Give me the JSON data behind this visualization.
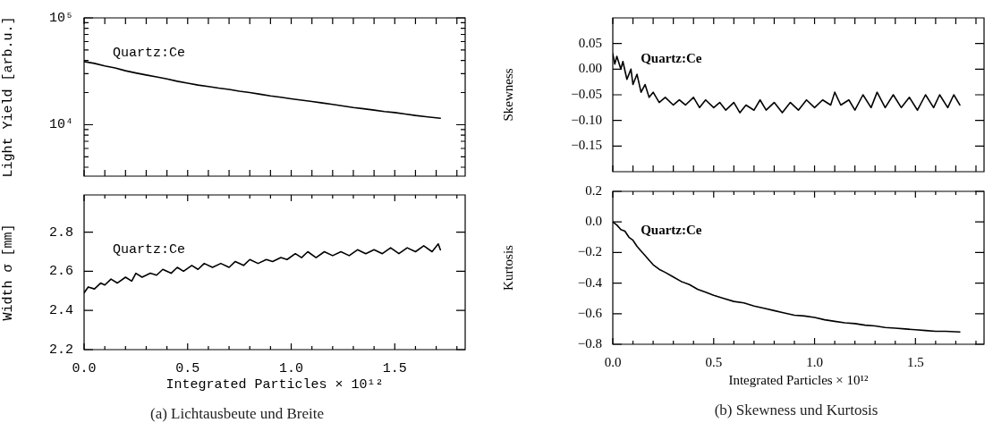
{
  "chart_data": [
    {
      "type": "line",
      "ylabel": "Light Yield [arb.u.]",
      "log": true,
      "legend": false,
      "grid": false,
      "tick_labels": "y",
      "xlim": [
        0,
        1.84
      ],
      "xticks": [
        {
          "value": 0,
          "label": null
        },
        {
          "value": 0.1,
          "label": null
        },
        {
          "value": 0.2,
          "label": null
        },
        {
          "value": 0.3,
          "label": null
        },
        {
          "value": 0.4,
          "label": null
        },
        {
          "value": 0.5,
          "label": null
        },
        {
          "value": 0.6,
          "label": null
        },
        {
          "value": 0.7,
          "label": null
        },
        {
          "value": 0.8,
          "label": null
        },
        {
          "value": 0.9,
          "label": null
        },
        {
          "value": 1.0,
          "label": null
        },
        {
          "value": 1.1,
          "label": null
        },
        {
          "value": 1.2,
          "label": null
        },
        {
          "value": 1.3,
          "label": null
        },
        {
          "value": 1.4,
          "label": null
        },
        {
          "value": 1.5,
          "label": null
        },
        {
          "value": 1.6,
          "label": null
        },
        {
          "value": 1.7,
          "label": null
        },
        {
          "value": 1.8,
          "label": null
        }
      ],
      "ylim": [
        3300,
        100000
      ],
      "yticks": [
        {
          "value": 4000,
          "label": null
        },
        {
          "value": 5000,
          "label": null
        },
        {
          "value": 6000,
          "label": null
        },
        {
          "value": 7000,
          "label": null
        },
        {
          "value": 8000,
          "label": null
        },
        {
          "value": 9000,
          "label": null
        },
        {
          "value": 10000,
          "label": "10⁴"
        },
        {
          "value": 20000,
          "label": null
        },
        {
          "value": 30000,
          "label": null
        },
        {
          "value": 40000,
          "label": null
        },
        {
          "value": 50000,
          "label": null
        },
        {
          "value": 60000,
          "label": null
        },
        {
          "value": 70000,
          "label": null
        },
        {
          "value": 80000,
          "label": null
        },
        {
          "value": 90000,
          "label": null
        },
        {
          "value": 100000,
          "label": "10⁵"
        }
      ],
      "series": [
        {
          "name": "Quartz:Ce",
          "color": "#000000",
          "x": [
            0,
            0.05,
            0.1,
            0.15,
            0.2,
            0.25,
            0.3,
            0.35,
            0.4,
            0.45,
            0.5,
            0.55,
            0.6,
            0.65,
            0.7,
            0.75,
            0.8,
            0.85,
            0.9,
            0.95,
            1.0,
            1.05,
            1.1,
            1.15,
            1.2,
            1.25,
            1.3,
            1.35,
            1.4,
            1.45,
            1.5,
            1.55,
            1.6,
            1.65,
            1.72
          ],
          "values": [
            39000,
            37500,
            35500,
            34000,
            32000,
            30500,
            29200,
            28000,
            26800,
            25500,
            24500,
            23500,
            22800,
            22000,
            21400,
            20600,
            20000,
            19300,
            18600,
            18100,
            17500,
            17000,
            16500,
            16000,
            15500,
            15000,
            14500,
            14100,
            13700,
            13300,
            13000,
            12600,
            12200,
            11900,
            11500
          ]
        }
      ]
    },
    {
      "type": "line",
      "xlabel": "Integrated Particles × 10¹²",
      "ylabel": "Width σ [mm]",
      "legend": false,
      "grid": false,
      "annotations": [
        "(a) Lichtausbeute und Breite"
      ],
      "xlim": [
        0,
        1.84
      ],
      "xticks": [
        {
          "value": 0,
          "label": "0.0"
        },
        {
          "value": 0.1,
          "label": null
        },
        {
          "value": 0.2,
          "label": null
        },
        {
          "value": 0.3,
          "label": null
        },
        {
          "value": 0.4,
          "label": null
        },
        {
          "value": 0.5,
          "label": "0.5"
        },
        {
          "value": 0.6,
          "label": null
        },
        {
          "value": 0.7,
          "label": null
        },
        {
          "value": 0.8,
          "label": null
        },
        {
          "value": 0.9,
          "label": null
        },
        {
          "value": 1.0,
          "label": "1.0"
        },
        {
          "value": 1.1,
          "label": null
        },
        {
          "value": 1.2,
          "label": null
        },
        {
          "value": 1.3,
          "label": null
        },
        {
          "value": 1.4,
          "label": null
        },
        {
          "value": 1.5,
          "label": "1.5"
        },
        {
          "value": 1.6,
          "label": null
        },
        {
          "value": 1.7,
          "label": null
        },
        {
          "value": 1.8,
          "label": null
        }
      ],
      "ylim": [
        2.2,
        2.99
      ],
      "yticks": [
        2.2,
        2.4,
        2.6,
        2.8
      ],
      "series": [
        {
          "name": "Quartz:Ce",
          "color": "#000000",
          "x": [
            0,
            0.02,
            0.05,
            0.08,
            0.1,
            0.13,
            0.16,
            0.2,
            0.23,
            0.25,
            0.28,
            0.32,
            0.35,
            0.38,
            0.42,
            0.45,
            0.48,
            0.52,
            0.55,
            0.58,
            0.62,
            0.66,
            0.7,
            0.73,
            0.77,
            0.8,
            0.84,
            0.88,
            0.91,
            0.95,
            0.98,
            1.02,
            1.05,
            1.08,
            1.12,
            1.16,
            1.2,
            1.24,
            1.28,
            1.32,
            1.36,
            1.4,
            1.44,
            1.48,
            1.52,
            1.56,
            1.6,
            1.64,
            1.68,
            1.71,
            1.72
          ],
          "values": [
            2.49,
            2.52,
            2.51,
            2.54,
            2.53,
            2.56,
            2.54,
            2.57,
            2.55,
            2.59,
            2.57,
            2.59,
            2.58,
            2.61,
            2.59,
            2.62,
            2.6,
            2.63,
            2.61,
            2.64,
            2.62,
            2.64,
            2.62,
            2.65,
            2.63,
            2.66,
            2.64,
            2.66,
            2.65,
            2.67,
            2.66,
            2.69,
            2.67,
            2.7,
            2.67,
            2.7,
            2.68,
            2.7,
            2.68,
            2.71,
            2.69,
            2.71,
            2.69,
            2.72,
            2.69,
            2.72,
            2.7,
            2.73,
            2.7,
            2.74,
            2.71
          ]
        }
      ]
    },
    {
      "type": "line",
      "ylabel": "Skewness",
      "legend": false,
      "grid": false,
      "tick_labels": "y",
      "xlim": [
        0,
        1.84
      ],
      "xticks": [
        {
          "value": 0,
          "label": null
        },
        {
          "value": 0.1,
          "label": null
        },
        {
          "value": 0.2,
          "label": null
        },
        {
          "value": 0.3,
          "label": null
        },
        {
          "value": 0.4,
          "label": null
        },
        {
          "value": 0.5,
          "label": null
        },
        {
          "value": 0.6,
          "label": null
        },
        {
          "value": 0.7,
          "label": null
        },
        {
          "value": 0.8,
          "label": null
        },
        {
          "value": 0.9,
          "label": null
        },
        {
          "value": 1.0,
          "label": null
        },
        {
          "value": 1.1,
          "label": null
        },
        {
          "value": 1.2,
          "label": null
        },
        {
          "value": 1.3,
          "label": null
        },
        {
          "value": 1.4,
          "label": null
        },
        {
          "value": 1.5,
          "label": null
        },
        {
          "value": 1.6,
          "label": null
        },
        {
          "value": 1.7,
          "label": null
        },
        {
          "value": 1.8,
          "label": null
        }
      ],
      "ylim": [
        -0.2,
        0.1
      ],
      "yticks": [
        {
          "value": 0.05,
          "label": "0.05"
        },
        {
          "value": 0,
          "label": "0.00"
        },
        {
          "value": -0.05,
          "label": "−0.05"
        },
        {
          "value": -0.1,
          "label": "−0.10"
        },
        {
          "value": -0.15,
          "label": "−0.15"
        }
      ],
      "series": [
        {
          "name": "Quartz:Ce",
          "color": "#000000",
          "x": [
            0,
            0.01,
            0.02,
            0.04,
            0.05,
            0.07,
            0.09,
            0.1,
            0.12,
            0.14,
            0.16,
            0.18,
            0.2,
            0.23,
            0.26,
            0.3,
            0.33,
            0.36,
            0.4,
            0.43,
            0.46,
            0.5,
            0.53,
            0.56,
            0.6,
            0.63,
            0.66,
            0.7,
            0.73,
            0.76,
            0.8,
            0.84,
            0.88,
            0.92,
            0.96,
            1.0,
            1.04,
            1.08,
            1.1,
            1.13,
            1.17,
            1.2,
            1.24,
            1.28,
            1.31,
            1.35,
            1.39,
            1.43,
            1.47,
            1.51,
            1.55,
            1.59,
            1.62,
            1.66,
            1.69,
            1.72
          ],
          "values": [
            0.03,
            0.01,
            0.025,
            0.0,
            0.015,
            -0.02,
            0.0,
            -0.03,
            -0.01,
            -0.045,
            -0.03,
            -0.055,
            -0.045,
            -0.065,
            -0.055,
            -0.07,
            -0.06,
            -0.07,
            -0.055,
            -0.075,
            -0.06,
            -0.075,
            -0.065,
            -0.08,
            -0.065,
            -0.085,
            -0.07,
            -0.08,
            -0.06,
            -0.08,
            -0.065,
            -0.085,
            -0.065,
            -0.08,
            -0.06,
            -0.075,
            -0.06,
            -0.07,
            -0.045,
            -0.07,
            -0.06,
            -0.08,
            -0.05,
            -0.075,
            -0.045,
            -0.075,
            -0.05,
            -0.075,
            -0.055,
            -0.08,
            -0.05,
            -0.075,
            -0.05,
            -0.075,
            -0.05,
            -0.07
          ]
        }
      ]
    },
    {
      "type": "line",
      "xlabel": "Integrated Particles × 10¹²",
      "ylabel": "Kurtosis",
      "legend": false,
      "grid": false,
      "annotations": [
        "(b) Skewness und Kurtosis"
      ],
      "xlim": [
        0,
        1.84
      ],
      "xticks": [
        {
          "value": 0,
          "label": "0.0"
        },
        {
          "value": 0.1,
          "label": null
        },
        {
          "value": 0.2,
          "label": null
        },
        {
          "value": 0.3,
          "label": null
        },
        {
          "value": 0.4,
          "label": null
        },
        {
          "value": 0.5,
          "label": "0.5"
        },
        {
          "value": 0.6,
          "label": null
        },
        {
          "value": 0.7,
          "label": null
        },
        {
          "value": 0.8,
          "label": null
        },
        {
          "value": 0.9,
          "label": null
        },
        {
          "value": 1.0,
          "label": "1.0"
        },
        {
          "value": 1.1,
          "label": null
        },
        {
          "value": 1.2,
          "label": null
        },
        {
          "value": 1.3,
          "label": null
        },
        {
          "value": 1.4,
          "label": null
        },
        {
          "value": 1.5,
          "label": "1.5"
        },
        {
          "value": 1.6,
          "label": null
        },
        {
          "value": 1.7,
          "label": null
        },
        {
          "value": 1.8,
          "label": null
        }
      ],
      "ylim": [
        -0.8,
        0.2
      ],
      "yticks": [
        {
          "value": 0.2,
          "label": "0.2"
        },
        {
          "value": 0,
          "label": "0.0"
        },
        {
          "value": -0.2,
          "label": "−0.2"
        },
        {
          "value": -0.4,
          "label": "−0.4"
        },
        {
          "value": -0.6,
          "label": "−0.6"
        },
        {
          "value": -0.8,
          "label": "−0.8"
        }
      ],
      "series": [
        {
          "name": "Quartz:Ce",
          "color": "#000000",
          "x": [
            0,
            0.02,
            0.04,
            0.06,
            0.08,
            0.1,
            0.12,
            0.14,
            0.16,
            0.18,
            0.2,
            0.23,
            0.26,
            0.3,
            0.34,
            0.38,
            0.42,
            0.46,
            0.5,
            0.55,
            0.6,
            0.65,
            0.7,
            0.75,
            0.8,
            0.85,
            0.9,
            0.95,
            1.0,
            1.05,
            1.1,
            1.15,
            1.2,
            1.25,
            1.3,
            1.35,
            1.4,
            1.45,
            1.5,
            1.55,
            1.6,
            1.65,
            1.72
          ],
          "values": [
            0.0,
            -0.02,
            -0.05,
            -0.06,
            -0.1,
            -0.12,
            -0.16,
            -0.19,
            -0.22,
            -0.25,
            -0.28,
            -0.31,
            -0.33,
            -0.36,
            -0.39,
            -0.41,
            -0.44,
            -0.46,
            -0.48,
            -0.5,
            -0.52,
            -0.53,
            -0.55,
            -0.565,
            -0.58,
            -0.595,
            -0.61,
            -0.615,
            -0.625,
            -0.64,
            -0.65,
            -0.66,
            -0.665,
            -0.675,
            -0.68,
            -0.69,
            -0.695,
            -0.7,
            -0.705,
            -0.71,
            -0.715,
            -0.715,
            -0.72
          ]
        }
      ]
    }
  ]
}
